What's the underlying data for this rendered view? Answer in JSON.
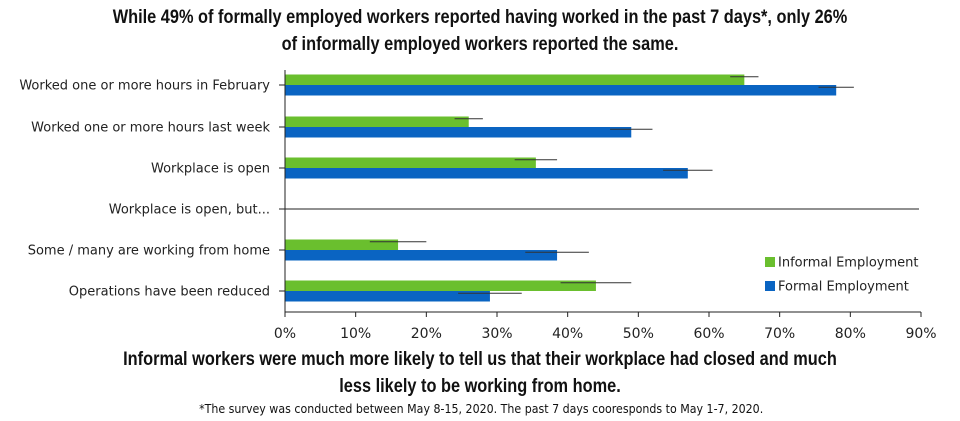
{
  "title_lines": [
    "While 49% of formally employed workers reported having worked in the past 7 days*, only 26%",
    "of informally employed workers reported the same."
  ],
  "subtitle_lines": [
    "Informal workers were much more likely to tell us that their workplace had closed and much",
    "less likely to be working from home."
  ],
  "footnote": "*The survey was conducted between May 8-15, 2020. The past 7 days cooresponds to May 1-7, 2020.",
  "chart_data": {
    "type": "bar",
    "orientation": "horizontal",
    "categories": [
      "Worked one or more hours in February",
      "Worked one or more hours last week",
      "Workplace is open",
      "Workplace is open, but...",
      "Some / many are working from home",
      "Operations have been reduced"
    ],
    "x_ticks": [
      "0%",
      "10%",
      "20%",
      "30%",
      "40%",
      "50%",
      "60%",
      "70%",
      "80%",
      "90%"
    ],
    "xlim": [
      0,
      90
    ],
    "grid": false,
    "legend_position": "bottom-right",
    "series": [
      {
        "name": "Informal Employment",
        "color": "#6abf2e",
        "values": [
          65,
          26,
          35.5,
          null,
          16,
          44
        ],
        "error_low": [
          63,
          24,
          32.5,
          null,
          12,
          39
        ],
        "error_high": [
          67,
          28,
          38.5,
          null,
          20,
          49
        ]
      },
      {
        "name": "Formal Employment",
        "color": "#0a64c2",
        "values": [
          78,
          49,
          57,
          null,
          38.5,
          29
        ],
        "error_low": [
          75.5,
          46,
          53.5,
          null,
          34,
          24.5
        ],
        "error_high": [
          80.5,
          52,
          60.5,
          null,
          43,
          33.5
        ]
      }
    ]
  }
}
